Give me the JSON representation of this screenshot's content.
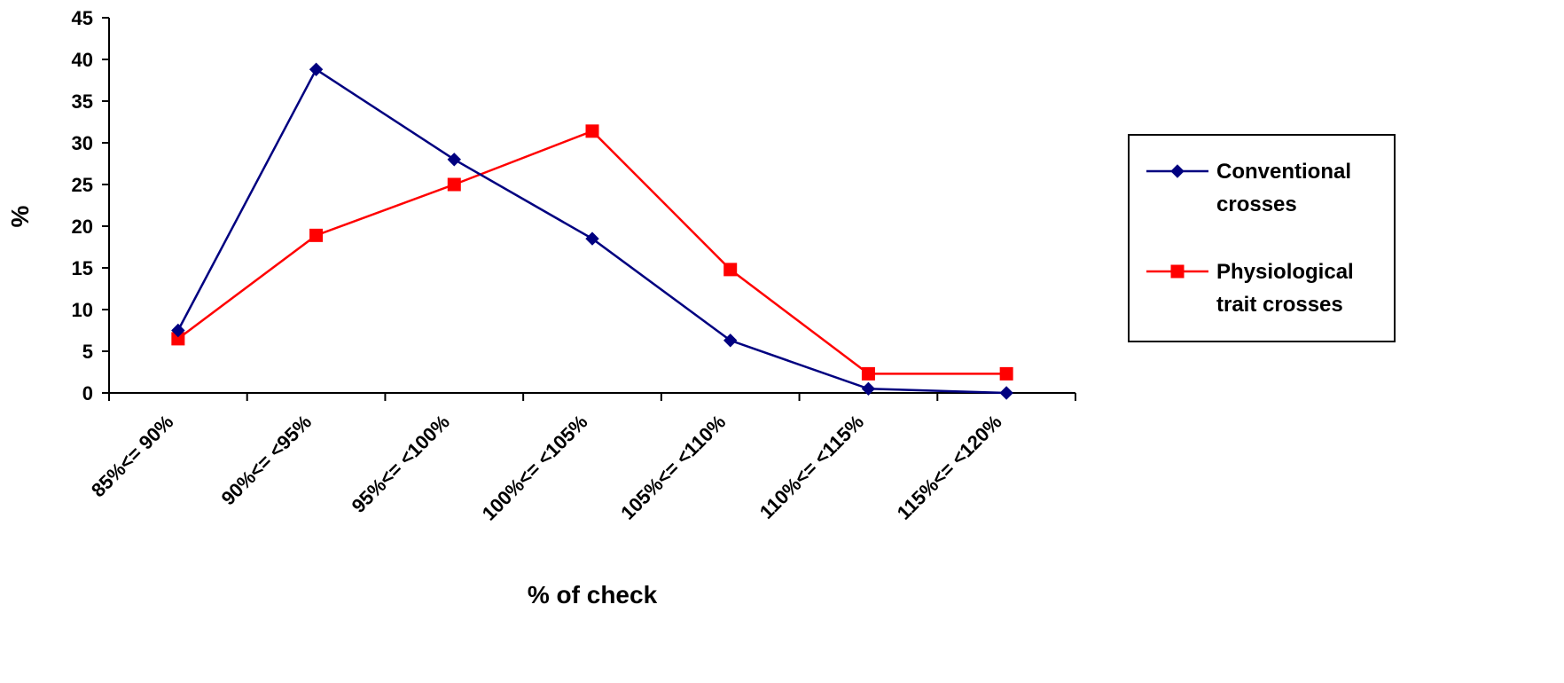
{
  "chart_data": {
    "type": "line",
    "xlabel": "% of check",
    "ylabel": "%",
    "ylim": [
      0,
      45
    ],
    "yticks": [
      "0",
      "5",
      "10",
      "15",
      "20",
      "25",
      "30",
      "35",
      "40",
      "45"
    ],
    "categories": [
      "85%<= 90%",
      "90%<= <95%",
      "95%<= <100%",
      "100%<= <105%",
      "105%<= <110%",
      "110%<= <115%",
      "115%<= <120%"
    ],
    "grid": false,
    "legend_position": "right",
    "series": [
      {
        "name": "Conventional crosses",
        "name_lines": [
          "Conventional",
          "crosses"
        ],
        "color": "#000080",
        "marker": "diamond",
        "values": [
          7.5,
          38.8,
          28.0,
          18.5,
          6.3,
          0.5,
          0.0
        ]
      },
      {
        "name": "Physiological trait crosses",
        "name_lines": [
          "Physiological",
          "trait crosses"
        ],
        "color": "#ff0000",
        "marker": "square",
        "values": [
          6.5,
          18.9,
          25.0,
          31.4,
          14.8,
          2.3,
          2.3
        ]
      }
    ]
  }
}
